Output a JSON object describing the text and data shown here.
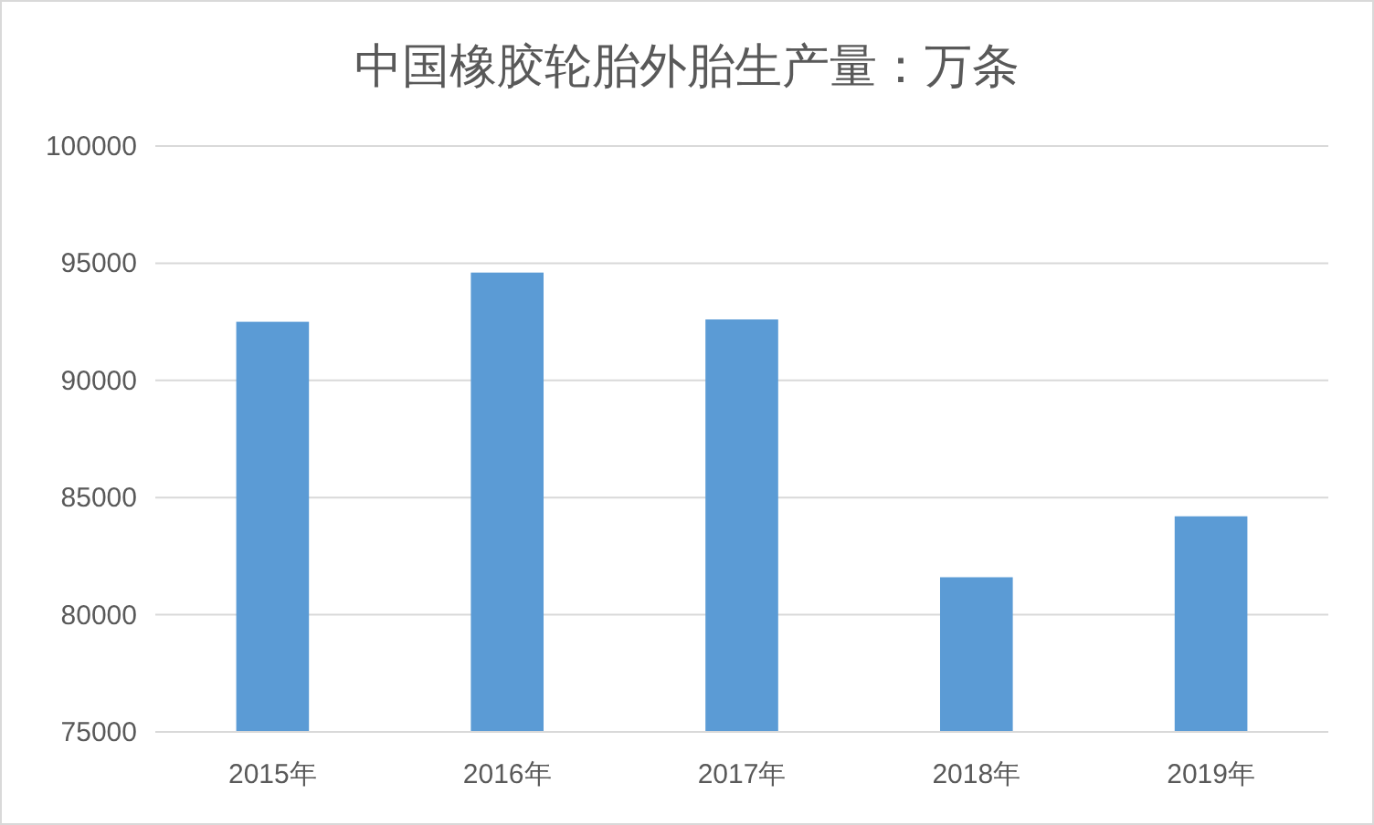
{
  "chart_data": {
    "type": "bar",
    "title": "中国橡胶轮胎外胎生产量：万条",
    "categories": [
      "2015年",
      "2016年",
      "2017年",
      "2018年",
      "2019年"
    ],
    "values": [
      92500,
      94600,
      92600,
      81600,
      84200
    ],
    "color": "#5b9bd5",
    "ylim": [
      75000,
      100000
    ],
    "yticks": [
      75000,
      80000,
      85000,
      90000,
      95000,
      100000
    ],
    "grid": "y"
  }
}
